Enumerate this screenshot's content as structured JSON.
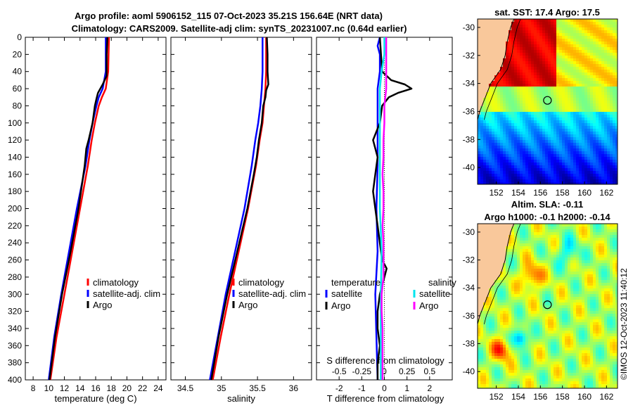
{
  "header": {
    "title_line1": "Argo profile: aoml 5906152_115 07-Oct-2023 35.21S 156.64E (NRT data)",
    "title_line2": "Climatology: CARS2009. Satellite-adj clim: synTS_20231007.nc (0.64d earlier)"
  },
  "credit": "©IMOS 12-Oct-2023 11:40:12",
  "colors": {
    "climatology": "#ff0000",
    "satellite": "#0000ff",
    "argo": "#000000",
    "sat_salinity": "#00e5ee",
    "argo_salinity": "#ff00ff"
  },
  "chart_data": [
    {
      "type": "line",
      "name": "temperature",
      "xlabel": "temperature (deg C)",
      "ylabel": "",
      "xlim": [
        7,
        25
      ],
      "ylim": [
        400,
        0
      ],
      "xticks": [
        "8",
        "10",
        "12",
        "14",
        "16",
        "18",
        "20",
        "22",
        "24"
      ],
      "yticks": [
        "0",
        "20",
        "40",
        "60",
        "80",
        "100",
        "120",
        "140",
        "160",
        "180",
        "200",
        "220",
        "240",
        "260",
        "280",
        "300",
        "320",
        "340",
        "360",
        "380",
        "400"
      ],
      "legend": [
        "climatology",
        "satellite-adj. clim",
        "Argo"
      ],
      "series": [
        {
          "name": "climatology",
          "depth": [
            0,
            40,
            60,
            70,
            80,
            100,
            120,
            150,
            200,
            250,
            300,
            350,
            400
          ],
          "values": [
            17.7,
            17.6,
            17.3,
            16.8,
            16.4,
            15.9,
            15.5,
            15.0,
            14.0,
            13.0,
            12.0,
            11.0,
            10.2
          ]
        },
        {
          "name": "satellite-adj. clim",
          "depth": [
            0,
            40,
            60,
            70,
            80,
            100,
            120,
            150,
            200,
            250,
            300,
            350,
            400
          ],
          "values": [
            17.3,
            17.3,
            16.9,
            16.4,
            16.1,
            15.6,
            15.2,
            14.7,
            13.6,
            12.6,
            11.6,
            10.7,
            10.0
          ]
        },
        {
          "name": "Argo",
          "depth": [
            0,
            20,
            45,
            55,
            65,
            72,
            80,
            100,
            120,
            130,
            150,
            200,
            250,
            300,
            350,
            400
          ],
          "values": [
            17.5,
            17.4,
            17.4,
            16.9,
            16.3,
            16.1,
            15.9,
            15.6,
            15.1,
            14.8,
            14.6,
            13.8,
            12.8,
            11.7,
            10.8,
            10.1
          ]
        }
      ]
    },
    {
      "type": "line",
      "name": "salinity",
      "xlabel": "salinity",
      "ylabel": "",
      "xlim": [
        34.3,
        36.25
      ],
      "xticks": [
        "34.5",
        "35",
        "35.5",
        "36"
      ],
      "legend": [
        "climatology",
        "satellite-adj. clim",
        "Argo"
      ],
      "series": [
        {
          "name": "climatology",
          "depth": [
            0,
            40,
            60,
            80,
            100,
            120,
            150,
            200,
            250,
            300,
            350,
            400
          ],
          "values": [
            35.62,
            35.62,
            35.61,
            35.59,
            35.57,
            35.53,
            35.48,
            35.37,
            35.24,
            35.11,
            34.99,
            34.88
          ]
        },
        {
          "name": "satellite-adj. clim",
          "depth": [
            0,
            40,
            60,
            80,
            100,
            120,
            150,
            200,
            250,
            300,
            350,
            400
          ],
          "values": [
            35.57,
            35.57,
            35.56,
            35.54,
            35.51,
            35.47,
            35.42,
            35.32,
            35.19,
            35.06,
            34.95,
            34.84
          ]
        },
        {
          "name": "Argo",
          "depth": [
            0,
            20,
            40,
            55,
            62,
            70,
            80,
            100,
            120,
            140,
            160,
            200,
            250,
            300,
            350,
            400
          ],
          "values": [
            35.63,
            35.64,
            35.64,
            35.65,
            35.62,
            35.61,
            35.58,
            35.56,
            35.52,
            35.49,
            35.45,
            35.36,
            35.22,
            35.08,
            34.96,
            34.86
          ]
        }
      ]
    },
    {
      "type": "line",
      "name": "difference",
      "xlabel": "T difference from climatology",
      "xlabel2": "S difference from climatology",
      "xlim": [
        -3,
        3
      ],
      "s_xlim": [
        -0.75,
        0.75
      ],
      "xticks": [
        "-2",
        "-1",
        "0",
        "1",
        "2"
      ],
      "s_xticks": [
        "-0.5",
        "-0.25",
        "0",
        "0.25",
        "0.5"
      ],
      "legend_left_title": "temperature",
      "legend_right_title": "salinity",
      "legend": [
        "satellite",
        "Argo",
        "satellite",
        "Argo"
      ],
      "series": [
        {
          "name": "T satellite",
          "depth": [
            0,
            10,
            20,
            40,
            60,
            80,
            100,
            150,
            200,
            250,
            300,
            350,
            400
          ],
          "values": [
            -0.2,
            -0.3,
            -0.2,
            -0.2,
            -0.3,
            -0.3,
            -0.3,
            -0.3,
            -0.35,
            -0.3,
            -0.4,
            -0.35,
            -0.3
          ]
        },
        {
          "name": "T Argo",
          "depth": [
            0,
            20,
            40,
            50,
            55,
            60,
            65,
            70,
            80,
            100,
            120,
            140,
            160,
            180,
            200,
            220,
            240,
            260,
            270,
            280,
            300,
            320,
            340,
            360,
            380,
            400
          ],
          "values": [
            -0.2,
            -0.15,
            -0.1,
            0.3,
            0.9,
            1.2,
            0.6,
            0.2,
            -0.1,
            -0.2,
            -0.5,
            -0.3,
            -0.4,
            -0.5,
            -0.4,
            -0.3,
            -0.2,
            -0.1,
            0.1,
            0.0,
            -0.2,
            -0.3,
            -0.3,
            -0.2,
            -0.3,
            -0.3
          ]
        },
        {
          "name": "S satellite",
          "depth": [
            0,
            20,
            40,
            60,
            80,
            100,
            150,
            200,
            250,
            300,
            350,
            400
          ],
          "values": [
            0.0,
            0.0,
            -0.03,
            -0.05,
            -0.05,
            -0.05,
            -0.05,
            -0.05,
            -0.03,
            -0.04,
            -0.04,
            -0.04
          ]
        },
        {
          "name": "S Argo",
          "depth": [
            0,
            20,
            40,
            60,
            80,
            100,
            120,
            140,
            160,
            180,
            200,
            220,
            240,
            260,
            280,
            300,
            320,
            340,
            360,
            380,
            400
          ],
          "values": [
            0.02,
            0.02,
            0.02,
            0.02,
            0.0,
            0.0,
            -0.01,
            -0.01,
            -0.02,
            -0.01,
            -0.01,
            -0.02,
            -0.01,
            -0.01,
            -0.01,
            -0.03,
            -0.03,
            -0.02,
            -0.02,
            -0.02,
            -0.02
          ]
        }
      ]
    },
    {
      "type": "heatmap",
      "name": "sst_map",
      "title": "sat. SST: 17.4 Argo: 17.5",
      "xticks": [
        "152",
        "154",
        "156",
        "158",
        "160",
        "162"
      ],
      "yticks": [
        "-30",
        "-32",
        "-34",
        "-36",
        "-38",
        "-40"
      ],
      "xlim": [
        150.3,
        163.0
      ],
      "ylim": [
        -41.2,
        -29.4
      ],
      "marker": {
        "lon": 156.64,
        "lat": -35.21
      }
    },
    {
      "type": "heatmap",
      "name": "sla_map",
      "title": "Altim. SLA: -0.11",
      "subtitle": "Argo h1000: -0.1 h2000: -0.14",
      "xticks": [
        "152",
        "154",
        "156",
        "158",
        "160",
        "162"
      ],
      "yticks": [
        "-30",
        "-32",
        "-34",
        "-36",
        "-38",
        "-40"
      ],
      "xlim": [
        150.3,
        163.0
      ],
      "ylim": [
        -41.2,
        -29.4
      ],
      "marker": {
        "lon": 156.64,
        "lat": -35.21
      }
    }
  ]
}
